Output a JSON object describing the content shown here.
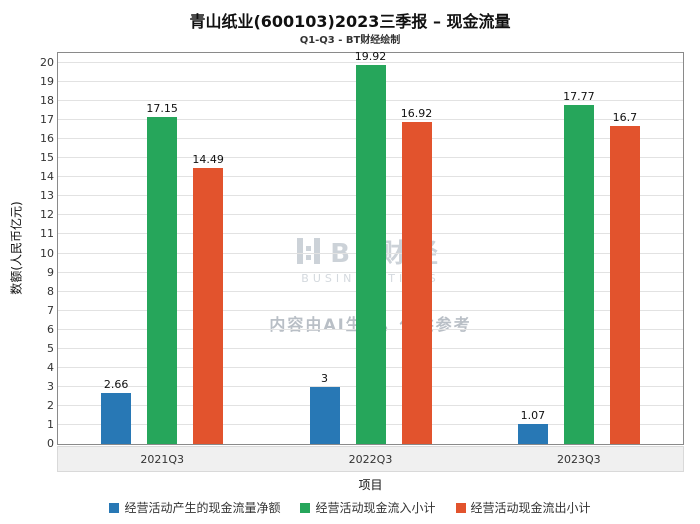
{
  "chart_data": {
    "type": "bar",
    "title": "青山纸业(600103)2023三季报 – 现金流量",
    "subtitle": "Q1-Q3 - BT财经绘制",
    "xlabel": "项目",
    "ylabel": "数额(人民币亿元)",
    "categories": [
      "2021Q3",
      "2022Q3",
      "2023Q3"
    ],
    "series": [
      {
        "name": "经营活动产生的现金流量净额",
        "color": "#2878b5",
        "values": [
          2.66,
          3,
          1.07
        ]
      },
      {
        "name": "经营活动现金流入小计",
        "color": "#26a65b",
        "values": [
          17.15,
          19.92,
          17.77
        ]
      },
      {
        "name": "经营活动现金流出小计",
        "color": "#e2532d",
        "values": [
          14.49,
          16.92,
          16.7
        ]
      }
    ],
    "ylim": [
      0,
      20
    ],
    "ytick_step": 1,
    "grid": true,
    "legend_position": "bottom"
  },
  "watermark": {
    "brand": "BT财经",
    "subbrand": "BUSINESSTIVES",
    "note": "内容由AI生成，仅供参考"
  }
}
